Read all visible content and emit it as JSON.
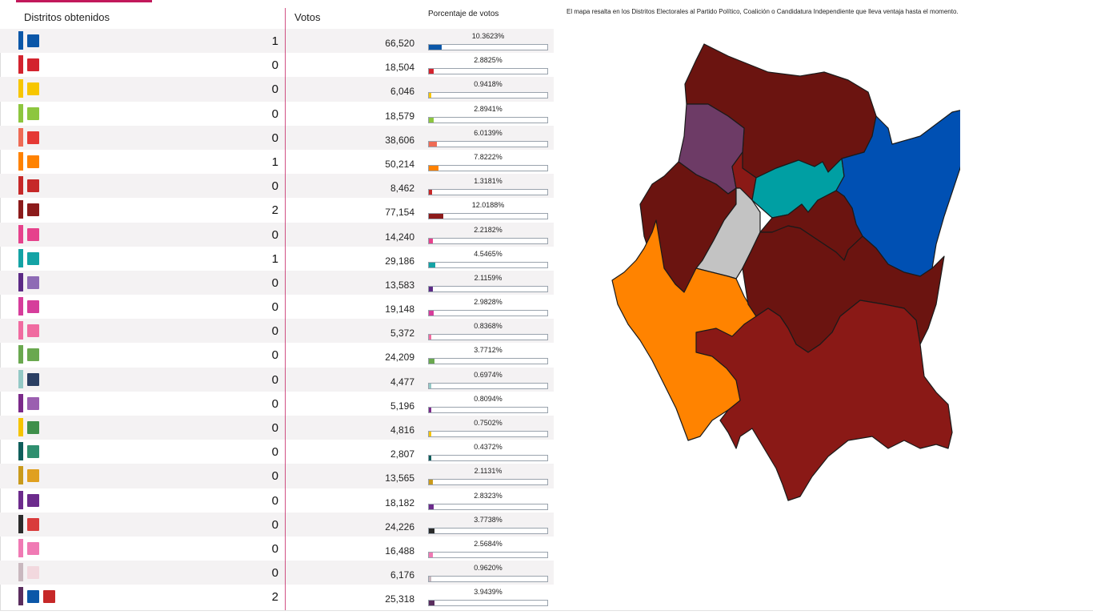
{
  "header": {
    "distritos": "Distritos obtenidos",
    "votos": "Votos",
    "porcentaje": "Porcentaje de votos"
  },
  "map_note": "El mapa resalta en los Distritos Electorales al Partido Político, Coalición o Candidatura Independiente que lleva ventaja hasta el momento.",
  "rows": [
    {
      "party_icon": "pan-logo",
      "color": "#0b57a8",
      "logo_color": "#0b57a8",
      "distritos": "1",
      "votos": "66,520",
      "pct": "10.3623%",
      "pct_value": 10.3623
    },
    {
      "party_icon": "pri-logo",
      "color": "#d3232e",
      "logo_color": "#d3232e",
      "distritos": "0",
      "votos": "18,504",
      "pct": "2.8825%",
      "pct_value": 2.8825
    },
    {
      "party_icon": "prd-logo",
      "color": "#f7c600",
      "logo_color": "#f7c600",
      "distritos": "0",
      "votos": "6,046",
      "pct": "0.9418%",
      "pct_value": 0.9418
    },
    {
      "party_icon": "pvem-logo",
      "color": "#8dc63f",
      "logo_color": "#8dc63f",
      "distritos": "0",
      "votos": "18,579",
      "pct": "2.8941%",
      "pct_value": 2.8941
    },
    {
      "party_icon": "pt-logo",
      "color": "#ee6b55",
      "logo_color": "#e53935",
      "distritos": "0",
      "votos": "38,606",
      "pct": "6.0139%",
      "pct_value": 6.0139
    },
    {
      "party_icon": "mc-logo",
      "color": "#ff8200",
      "logo_color": "#ff8200",
      "distritos": "1",
      "votos": "50,214",
      "pct": "7.8222%",
      "pct_value": 7.8222
    },
    {
      "party_icon": "psd-logo",
      "color": "#c62828",
      "logo_color": "#c62828",
      "distritos": "0",
      "votos": "8,462",
      "pct": "1.3181%",
      "pct_value": 1.3181
    },
    {
      "party_icon": "morena-logo",
      "color": "#8c1b1b",
      "logo_color": "#8c1b1b",
      "distritos": "2",
      "votos": "77,154",
      "pct": "12.0188%",
      "pct_value": 12.0188
    },
    {
      "party_icon": "local-party-logo",
      "color": "#e6428c",
      "logo_color": "#e6428c",
      "distritos": "0",
      "votos": "14,240",
      "pct": "2.2182%",
      "pct_value": 2.2182
    },
    {
      "party_icon": "local-party-logo",
      "color": "#14a3a5",
      "logo_color": "#14a3a5",
      "distritos": "1",
      "votos": "29,186",
      "pct": "4.5465%",
      "pct_value": 4.5465
    },
    {
      "party_icon": "local-party-logo",
      "color": "#5c2a86",
      "logo_color": "#8e6bb5",
      "distritos": "0",
      "votos": "13,583",
      "pct": "2.1159%",
      "pct_value": 2.1159
    },
    {
      "party_icon": "local-party-logo",
      "color": "#d63d9b",
      "logo_color": "#d63d9b",
      "distritos": "0",
      "votos": "19,148",
      "pct": "2.9828%",
      "pct_value": 2.9828
    },
    {
      "party_icon": "local-party-logo",
      "color": "#f06ba0",
      "logo_color": "#f06ba0",
      "distritos": "0",
      "votos": "5,372",
      "pct": "0.8368%",
      "pct_value": 0.8368
    },
    {
      "party_icon": "local-party-logo",
      "color": "#6aa84f",
      "logo_color": "#6aa84f",
      "distritos": "0",
      "votos": "24,209",
      "pct": "3.7712%",
      "pct_value": 3.7712
    },
    {
      "party_icon": "local-party-logo",
      "color": "#94c9c6",
      "logo_color": "#2b3f63",
      "distritos": "0",
      "votos": "4,477",
      "pct": "0.6974%",
      "pct_value": 0.6974
    },
    {
      "party_icon": "local-party-logo",
      "color": "#7b2a8a",
      "logo_color": "#9b5fb0",
      "distritos": "0",
      "votos": "5,196",
      "pct": "0.8094%",
      "pct_value": 0.8094
    },
    {
      "party_icon": "local-party-logo",
      "color": "#f5c400",
      "logo_color": "#3f8f4b",
      "distritos": "0",
      "votos": "4,816",
      "pct": "0.7502%",
      "pct_value": 0.7502
    },
    {
      "party_icon": "local-party-logo",
      "color": "#0f5e5b",
      "logo_color": "#2f8f6f",
      "distritos": "0",
      "votos": "2,807",
      "pct": "0.4372%",
      "pct_value": 0.4372
    },
    {
      "party_icon": "local-party-logo",
      "color": "#c99a1c",
      "logo_color": "#e0a020",
      "distritos": "0",
      "votos": "13,565",
      "pct": "2.1131%",
      "pct_value": 2.1131
    },
    {
      "party_icon": "pes-logo",
      "color": "#6c2b8c",
      "logo_color": "#6c2b8c",
      "distritos": "0",
      "votos": "18,182",
      "pct": "2.8323%",
      "pct_value": 2.8323
    },
    {
      "party_icon": "local-party-logo",
      "color": "#2b2b2b",
      "logo_color": "#d93b3b",
      "distritos": "0",
      "votos": "24,226",
      "pct": "3.7738%",
      "pct_value": 3.7738
    },
    {
      "party_icon": "local-party-logo",
      "color": "#f07ab4",
      "logo_color": "#f07ab4",
      "distritos": "0",
      "votos": "16,488",
      "pct": "2.5684%",
      "pct_value": 2.5684
    },
    {
      "party_icon": "local-party-logo",
      "color": "#c9b8bf",
      "logo_color": "#f2d8de",
      "distritos": "0",
      "votos": "6,176",
      "pct": "0.9620%",
      "pct_value": 0.962
    },
    {
      "party_icon": "pan-psd-coalition-logo",
      "color": "#5a2d5e",
      "logo_color": "#0b57a8",
      "logo2_color": "#c62828",
      "distritos": "2",
      "votos": "25,318",
      "pct": "3.9439%",
      "pct_value": 3.9439
    }
  ],
  "map_colors": {
    "morena": "#6b1410",
    "morena_light": "#8a1916",
    "pan": "#0050b3",
    "mc": "#ff8300",
    "teal": "#009fa3",
    "purple": "#6d3b66",
    "gray": "#c3c3c3"
  }
}
